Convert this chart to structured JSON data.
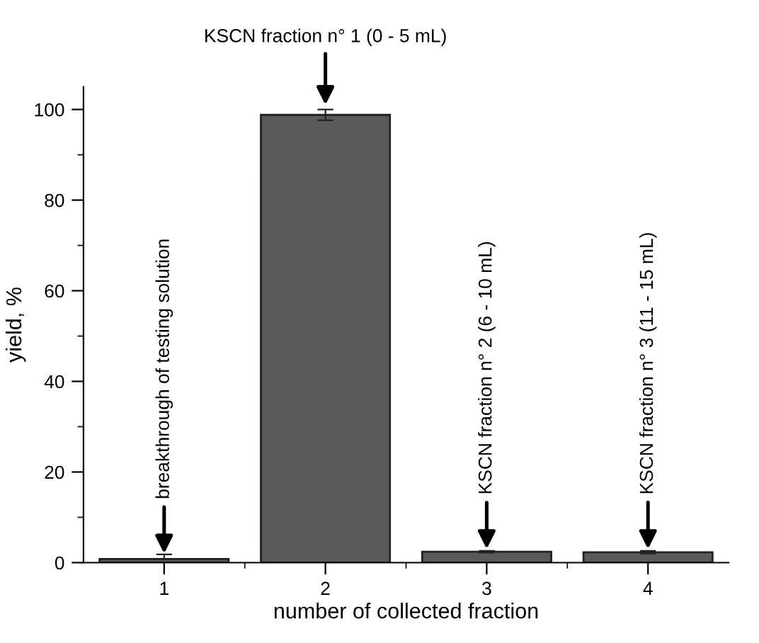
{
  "chart_data": {
    "type": "bar",
    "xlabel": "number of collected fraction",
    "ylabel": "yield, %",
    "categories": [
      "1",
      "2",
      "3",
      "4"
    ],
    "values": [
      0.8,
      98.8,
      2.4,
      2.3
    ],
    "errors": [
      [
        0.8,
        1.8
      ],
      1.2,
      0.2,
      0.3
    ],
    "color": "#5a5a5a",
    "ylim": [
      0,
      105
    ],
    "yticks": [
      0,
      20,
      40,
      60,
      80,
      100
    ],
    "grid": false,
    "annotations": [
      {
        "text": "breakthrough of testing solution",
        "x": "1",
        "y": 2
      },
      {
        "text": "KSCN fraction n° 1 (0 - 5 mL)",
        "x": "2",
        "y": 101
      },
      {
        "text": "KSCN fraction n° 2 (6 - 10 mL)",
        "x": "3",
        "y": 3
      },
      {
        "text": "KSCN fraction n° 3 (11 - 15 mL)",
        "x": "4",
        "y": 3
      }
    ]
  }
}
